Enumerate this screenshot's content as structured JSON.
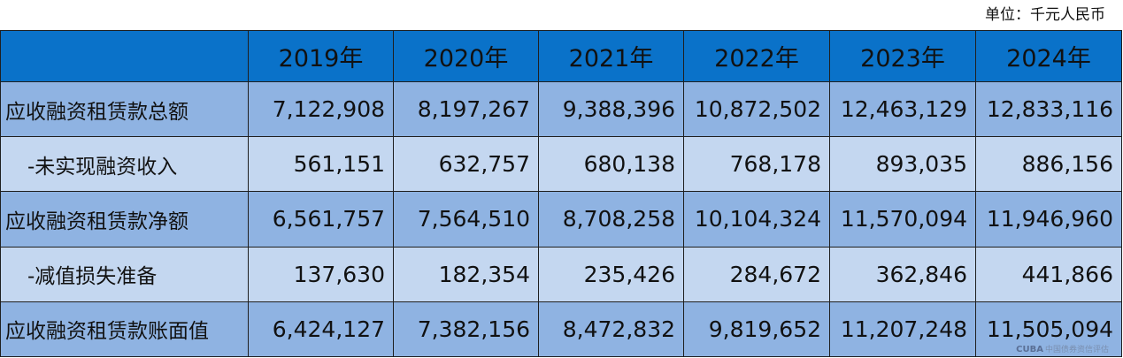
{
  "unit_label": "单位：千元人民币",
  "years": [
    "2019年",
    "2020年",
    "2021年",
    "2022年",
    "2023年",
    "2024年"
  ],
  "rows": [
    {
      "label": "应收融资租赁款总额",
      "values": [
        "7,122,908",
        "8,197,267",
        "9,388,396",
        "10,872,502",
        "12,463,129",
        "12,833,116"
      ]
    },
    {
      "label": "-未实现融资收入",
      "values": [
        "561,151",
        "632,757",
        "680,138",
        "768,178",
        "893,035",
        "886,156"
      ]
    },
    {
      "label": "应收融资租赁款净额",
      "values": [
        "6,561,757",
        "7,564,510",
        "8,708,258",
        "10,104,324",
        "11,570,094",
        "11,946,960"
      ]
    },
    {
      "label": "-减值损失准备",
      "values": [
        "137,630",
        "182,354",
        "235,426",
        "284,672",
        "362,846",
        "441,866"
      ]
    },
    {
      "label": "应收融资租赁款账面值",
      "values": [
        "6,424,127",
        "7,382,156",
        "8,472,832",
        "9,819,652",
        "11,207,248",
        "11,505,094"
      ]
    }
  ],
  "watermark": {
    "logo": "CUBA",
    "text": "中国债券资信评估"
  },
  "colors": {
    "header": "#0a72c9",
    "row_dark": "#8fb3e2",
    "row_light": "#c4d7f0"
  }
}
